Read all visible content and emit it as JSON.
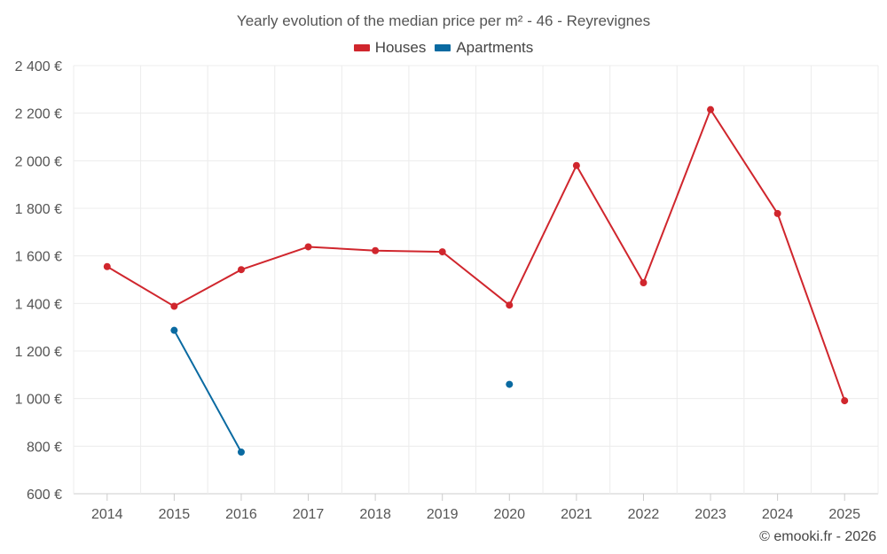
{
  "chart_data": {
    "type": "line",
    "title": "Yearly evolution of the median price per m² - 46 - Reyrevignes",
    "categories": [
      "2014",
      "2015",
      "2016",
      "2017",
      "2018",
      "2019",
      "2020",
      "2021",
      "2022",
      "2023",
      "2024",
      "2025"
    ],
    "series": [
      {
        "name": "Houses",
        "color": "#d0262d",
        "values": [
          1555,
          1388,
          1542,
          1638,
          1622,
          1617,
          1393,
          1980,
          1487,
          2215,
          1778,
          991
        ]
      },
      {
        "name": "Apartments",
        "color": "#0a6aa1",
        "values": [
          null,
          1287,
          775,
          null,
          null,
          null,
          1060,
          null,
          null,
          null,
          null,
          null
        ]
      }
    ],
    "ylim": [
      600,
      2400
    ],
    "yticks": [
      600,
      800,
      1000,
      1200,
      1400,
      1600,
      1800,
      2000,
      2200,
      2400
    ],
    "ytick_labels": [
      "600 €",
      "800 €",
      "1 000 €",
      "1 200 €",
      "1 400 €",
      "1 600 €",
      "1 800 €",
      "2 000 €",
      "2 200 €",
      "2 400 €"
    ],
    "xlabel": "",
    "ylabel": "",
    "grid": true,
    "legend_position": "top-center"
  },
  "credit": "© emooki.fr - 2026"
}
